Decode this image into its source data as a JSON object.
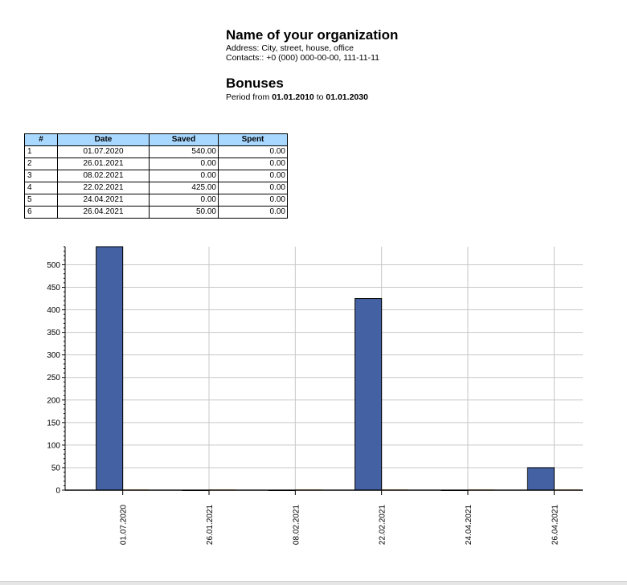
{
  "header": {
    "org_name": "Name of your organization",
    "address": "Address: City, street, house, office",
    "contacts": "Contacts:: +0 (000) 000-00-00, 111-11-11",
    "title": "Bonuses",
    "period_prefix": "Period from",
    "period_from": "01.01.2010",
    "period_mid": "to",
    "period_to": "01.01.2030"
  },
  "table": {
    "columns": [
      "#",
      "Date",
      "Saved",
      "Spent"
    ],
    "rows": [
      {
        "n": "1",
        "date": "01.07.2020",
        "saved": "540.00",
        "spent": "0.00"
      },
      {
        "n": "2",
        "date": "26.01.2021",
        "saved": "0.00",
        "spent": "0.00"
      },
      {
        "n": "3",
        "date": "08.02.2021",
        "saved": "0.00",
        "spent": "0.00"
      },
      {
        "n": "4",
        "date": "22.02.2021",
        "saved": "425.00",
        "spent": "0.00"
      },
      {
        "n": "5",
        "date": "24.04.2021",
        "saved": "0.00",
        "spent": "0.00"
      },
      {
        "n": "6",
        "date": "26.04.2021",
        "saved": "50.00",
        "spent": "0.00"
      }
    ]
  },
  "chart_data": {
    "type": "bar",
    "categories": [
      "01.07.2020",
      "26.01.2021",
      "08.02.2021",
      "22.02.2021",
      "24.04.2021",
      "26.04.2021"
    ],
    "series": [
      {
        "name": "Saved",
        "values": [
          540,
          0,
          0,
          425,
          0,
          50
        ],
        "color": "#4461a3"
      },
      {
        "name": "Spent",
        "values": [
          0,
          0,
          0,
          0,
          0,
          0
        ],
        "color": "#f0a040"
      }
    ],
    "yticks": [
      0,
      50,
      100,
      150,
      200,
      250,
      300,
      350,
      400,
      450,
      500
    ],
    "ylim": [
      0,
      540
    ],
    "grid": true,
    "legend": "none",
    "title": "",
    "xlabel": "",
    "ylabel": ""
  }
}
